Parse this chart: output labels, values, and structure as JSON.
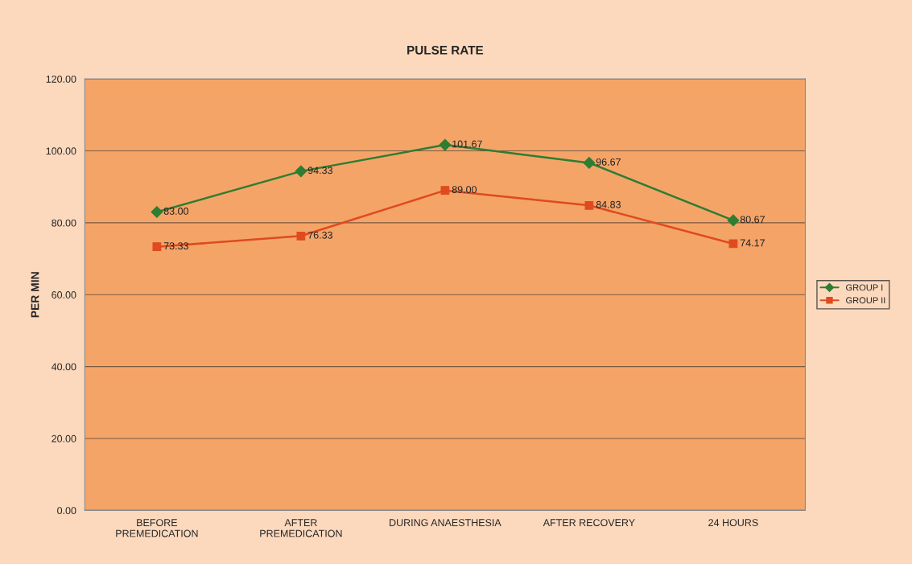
{
  "chart_data": {
    "type": "line",
    "title": "PULSE RATE",
    "ylabel": "PER MIN",
    "categories": [
      "BEFORE\nPREMEDICATION",
      "AFTER\nPREMEDICATION",
      "DURING ANAESTHESIA",
      "AFTER RECOVERY",
      "24 HOURS"
    ],
    "series": [
      {
        "name": "GROUP I",
        "color": "#2e7d32",
        "marker": "diamond",
        "values": [
          83.0,
          94.33,
          101.67,
          96.67,
          80.67
        ],
        "value_labels": [
          "83.00",
          "94.33",
          "101.67",
          "96.67",
          "80.67"
        ]
      },
      {
        "name": "GROUP II",
        "color": "#e04a1f",
        "marker": "square",
        "values": [
          73.33,
          76.33,
          89.0,
          84.83,
          74.17
        ],
        "value_labels": [
          "73.33",
          "76.33",
          "89.00",
          "84.83",
          "74.17"
        ]
      }
    ],
    "ylim": [
      0,
      120
    ],
    "yticks": [
      {
        "value": 0,
        "label": "0.00"
      },
      {
        "value": 20,
        "label": "20.00"
      },
      {
        "value": 40,
        "label": "40.00"
      },
      {
        "value": 60,
        "label": "60.00"
      },
      {
        "value": 80,
        "label": "80.00"
      },
      {
        "value": 100,
        "label": "100.00"
      },
      {
        "value": 120,
        "label": "120.00"
      }
    ],
    "grid": "y",
    "legend": "right",
    "line_style": "solid"
  }
}
